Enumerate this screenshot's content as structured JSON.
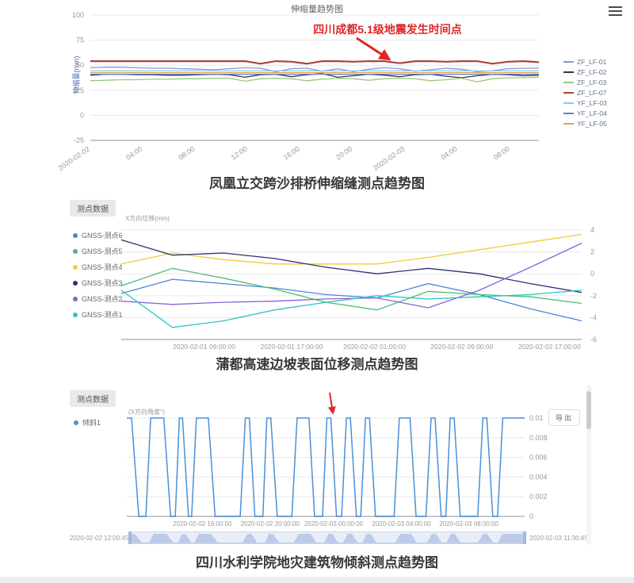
{
  "icons": {
    "chart1_menu": "hamburger-icon",
    "annotation_arrow": "arrow-down-right-icon",
    "tilt_arrow": "arrow-down-icon"
  },
  "colors": {
    "annotation_red": "#e02525",
    "datazoom_fill": "#b7c8e6",
    "datazoom_bg": "#e8eef8",
    "y_axis_title_blue": "#4d6fae"
  },
  "annotations": {
    "quake": "四川成都5.1级地震发生时间点"
  },
  "captions": {
    "c1": "凤凰立交跨沙排桥伸缩缝测点趋势图",
    "c2": "蒲都高速边坡表面位移测点趋势图",
    "c3": "四川水利学院地灾建筑物倾斜测点趋势图"
  },
  "panel2": {
    "chip_label": "测点数据"
  },
  "panel3": {
    "chip_label": "测点数据",
    "export_label": "导出",
    "zoom_start": "2020-02-02 12:00:45",
    "zoom_end": "2020-02-03 11:30:45"
  },
  "chart_data": [
    {
      "id": "c1",
      "type": "line",
      "title": "伸缩量趋势图",
      "y_axis_label": "伸缩量(mm)",
      "annotation": "四川成都5.1级地震发生时间点",
      "ylim": [
        -25,
        100
      ],
      "y_ticks": [
        100,
        75,
        50,
        25,
        0,
        -25
      ],
      "x_ticks": [
        "2020-02-02",
        "04:00",
        "08:00",
        "12:00",
        "16:00",
        "20:00",
        "2020-02-03",
        "04:00",
        "08:00"
      ],
      "legend_position": "right",
      "grid": true,
      "series": [
        {
          "name": "ZF_LF-01",
          "color": "#7b9bd2",
          "values": [
            47.5,
            48,
            48,
            47.5,
            47,
            47,
            46.5,
            46,
            45.5,
            46.5,
            47.5,
            47,
            43.5,
            46.5,
            47,
            44,
            46.5,
            43.5,
            46,
            47.5,
            46.5,
            44,
            45.5,
            47,
            46,
            43.5,
            44.5,
            46.5,
            47,
            47
          ]
        },
        {
          "name": "ZF_LF-02",
          "color": "#36364a",
          "values": [
            40,
            41,
            41,
            40.5,
            40.5,
            40,
            40,
            40.5,
            41,
            40.5,
            38,
            40.5,
            41,
            38.5,
            40.5,
            41.5,
            38,
            39.5,
            41,
            40,
            38.5,
            40.5,
            41,
            39,
            37.5,
            39.5,
            41,
            40.5,
            39.5,
            40
          ]
        },
        {
          "name": "ZF_LF-03",
          "color": "#9cc57d",
          "values": [
            34.5,
            35,
            35.5,
            35.5,
            36,
            36,
            36.5,
            36.5,
            37,
            37,
            34,
            36.5,
            37,
            36.5,
            34.5,
            36,
            37,
            36.5,
            35,
            36.5,
            37,
            36.5,
            34.5,
            35.5,
            37,
            33.5,
            36.5,
            37.5,
            37.5,
            38
          ]
        },
        {
          "name": "ZF_LF-07",
          "color": "#a94440",
          "width": 2.2,
          "values": [
            54,
            54,
            54,
            54,
            54,
            54,
            54,
            54,
            54,
            54,
            54,
            51.5,
            54,
            53.5,
            51.5,
            54,
            54,
            53.5,
            54,
            54,
            52,
            54,
            54,
            53.5,
            54,
            54,
            51.5,
            53.5,
            54,
            53
          ]
        },
        {
          "name": "YF_LF-03",
          "color": "#8fc6e8",
          "values": [
            44.3,
            44.3,
            44.3,
            44.3,
            44.3,
            44.3,
            44.3,
            44.3,
            44.3,
            44.3,
            44.3,
            44.3,
            44.3,
            44.3,
            44.3,
            44.3,
            44.3,
            44.3,
            44.3,
            44.3,
            44.3,
            44.3,
            44.3,
            44.3,
            44.3,
            44.3,
            44.3,
            44.3,
            44.3,
            44.3
          ]
        },
        {
          "name": "YF_LF-04",
          "color": "#5c83c4",
          "values": [
            41,
            41,
            41,
            41,
            41,
            41,
            41,
            41,
            41,
            41,
            41,
            41,
            41,
            41,
            41,
            41,
            41,
            41,
            41,
            41,
            41,
            41,
            41,
            41,
            41,
            41,
            41,
            41,
            41,
            41
          ]
        },
        {
          "name": "YF_LF-05",
          "color": "#e09c5e",
          "values": [
            42.6,
            42.6,
            42.6,
            42.6,
            42.6,
            42.6,
            42.6,
            42.6,
            42.6,
            42.6,
            42.6,
            42.6,
            42.6,
            42.6,
            42.6,
            42.6,
            42.6,
            42.6,
            42.6,
            42.6,
            42.6,
            42.6,
            42.6,
            42.6,
            42.6,
            42.6,
            42.6,
            42.6,
            42.6,
            42.6
          ]
        }
      ]
    },
    {
      "id": "c2",
      "type": "line",
      "axis_label": "X方向位移(mm)",
      "ylim": [
        -6,
        4
      ],
      "y_ticks": [
        4,
        2,
        0,
        -2,
        -4,
        -6
      ],
      "x_ticks": [
        "2020-02-01 09:00:00",
        "2020-02-01 17:00:00",
        "2020-02-02 01:00:00",
        "2020-02-02 09:00:00",
        "2020-02-02 17:00:00"
      ],
      "legend_position": "left",
      "grid": true,
      "series": [
        {
          "name": "GNSS-测点6",
          "color": "#4a86d8",
          "values": [
            -1.8,
            -0.5,
            -0.9,
            -1.3,
            -1.9,
            -2.2,
            -0.9,
            -1.9,
            -3.2,
            -4.3
          ]
        },
        {
          "name": "GNSS-测点5",
          "color": "#4dbd74",
          "values": [
            -1.1,
            0.5,
            -0.4,
            -1.4,
            -2.6,
            -3.3,
            -1.6,
            -1.9,
            -2.1,
            -2.7
          ]
        },
        {
          "name": "GNSS-测点4",
          "color": "#f2cc35",
          "values": [
            0.9,
            1.9,
            1.3,
            0.9,
            0.9,
            0.9,
            1.5,
            2.2,
            2.9,
            3.6
          ]
        },
        {
          "name": "GNSS-测点3",
          "color": "#2d3270",
          "values": [
            3.1,
            1.7,
            1.9,
            1.4,
            0.6,
            0,
            0.5,
            0,
            -0.9,
            -1.7
          ]
        },
        {
          "name": "GNSS-测点2",
          "color": "#8a63d2",
          "values": [
            -2.5,
            -2.8,
            -2.6,
            -2.5,
            -2.3,
            -2.2,
            -3.1,
            -1.5,
            0.6,
            2.8
          ]
        },
        {
          "name": "GNSS-测点1",
          "color": "#2cc5c0",
          "values": [
            -1.5,
            -4.9,
            -4.3,
            -3.3,
            -2.6,
            -2,
            -2.3,
            -2.1,
            -1.9,
            -1.5
          ]
        }
      ]
    },
    {
      "id": "c3",
      "type": "line",
      "axis_label": "(X方向角度°)",
      "ylim": [
        0,
        0.01
      ],
      "y_ticks": [
        0.01,
        0.008,
        0.006,
        0.004,
        0.002,
        0
      ],
      "x_ticks": [
        "2020-02-02 16:00:00",
        "2020-02-02 20:00:00",
        "2020-02-03 00:00:00",
        "2020-02-03 04:00:00",
        "2020-02-03 08:00:00"
      ],
      "legend_position": "left",
      "grid": true,
      "series": [
        {
          "name": "倾斜1",
          "color": "#4a90d9",
          "width": 1.5,
          "points": [
            [
              0,
              0.01
            ],
            [
              0.012,
              0.01
            ],
            [
              0.03,
              0
            ],
            [
              0.048,
              0
            ],
            [
              0.06,
              0.01
            ],
            [
              0.093,
              0.01
            ],
            [
              0.11,
              0
            ],
            [
              0.122,
              0
            ],
            [
              0.132,
              0.01
            ],
            [
              0.14,
              0.01
            ],
            [
              0.155,
              0
            ],
            [
              0.163,
              0
            ],
            [
              0.175,
              0.01
            ],
            [
              0.205,
              0.01
            ],
            [
              0.222,
              0
            ],
            [
              0.285,
              0
            ],
            [
              0.298,
              0.01
            ],
            [
              0.308,
              0.01
            ],
            [
              0.322,
              0
            ],
            [
              0.342,
              0
            ],
            [
              0.352,
              0.01
            ],
            [
              0.362,
              0.01
            ],
            [
              0.378,
              0
            ],
            [
              0.415,
              0
            ],
            [
              0.428,
              0.01
            ],
            [
              0.458,
              0.01
            ],
            [
              0.472,
              0
            ],
            [
              0.492,
              0
            ],
            [
              0.503,
              0.01
            ],
            [
              0.513,
              0.01
            ],
            [
              0.527,
              0
            ],
            [
              0.54,
              0
            ],
            [
              0.552,
              0.01
            ],
            [
              0.562,
              0.01
            ],
            [
              0.577,
              0
            ],
            [
              0.588,
              0
            ],
            [
              0.6,
              0.01
            ],
            [
              0.61,
              0.01
            ],
            [
              0.625,
              0
            ],
            [
              0.672,
              0
            ],
            [
              0.685,
              0.01
            ],
            [
              0.712,
              0.01
            ],
            [
              0.727,
              0
            ],
            [
              0.752,
              0
            ],
            [
              0.765,
              0.01
            ],
            [
              0.775,
              0.01
            ],
            [
              0.79,
              0
            ],
            [
              0.802,
              0
            ],
            [
              0.813,
              0.01
            ],
            [
              0.823,
              0.01
            ],
            [
              0.838,
              0
            ],
            [
              0.882,
              0
            ],
            [
              0.895,
              0.01
            ],
            [
              0.905,
              0.01
            ],
            [
              0.92,
              0
            ],
            [
              0.932,
              0
            ],
            [
              0.945,
              0.01
            ],
            [
              0.968,
              0.01
            ],
            [
              1,
              0.01
            ]
          ]
        }
      ]
    }
  ]
}
